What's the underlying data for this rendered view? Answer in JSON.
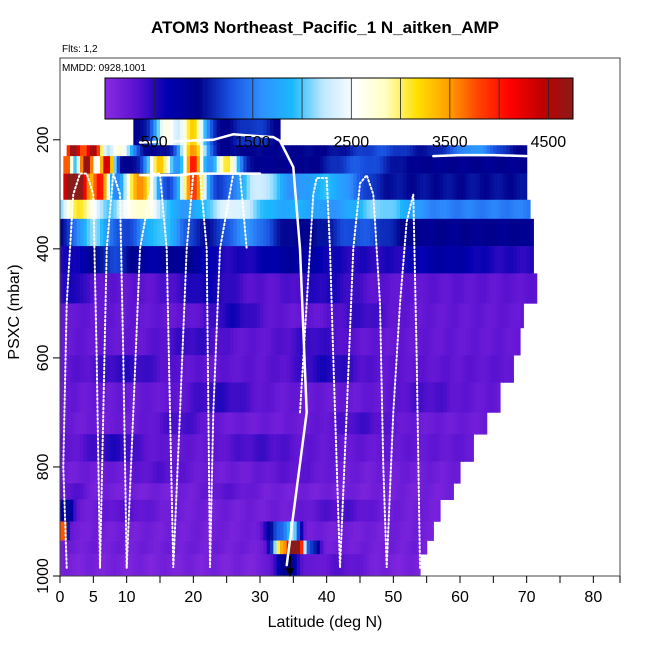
{
  "chart_data": {
    "type": "heatmap",
    "title": "ATOM3 Northeast_Pacific_1 N_aitken_AMP",
    "flights_label": "Flts: 1,2",
    "dates_label": "MMDD: 0928,1001",
    "xlabel": "Latitude (deg N)",
    "ylabel": "PSXC (mbar)",
    "xlim": [
      0,
      84
    ],
    "ylim": [
      1000,
      50
    ],
    "x_ticks": [
      0,
      5,
      10,
      20,
      30,
      40,
      50,
      60,
      70,
      80
    ],
    "x_minor_ticks": [
      15,
      25,
      35,
      45,
      55,
      65,
      75,
      84
    ],
    "y_ticks": [
      200,
      400,
      600,
      800,
      1000
    ],
    "colorbar": {
      "range": [
        0,
        4750
      ],
      "ticks": [
        500,
        1500,
        2500,
        3500,
        4500
      ],
      "colors": [
        "#8a2be2",
        "#5a12d0",
        "#0000b0",
        "#00008b",
        "#1850e0",
        "#2f8fff",
        "#1ab8ff",
        "#bfe8ff",
        "#ffffff",
        "#ffffc0",
        "#ffe000",
        "#ffa000",
        "#ff4000",
        "#ff0000",
        "#c00000",
        "#8b1a1a"
      ]
    },
    "arrow_latitude": 34.5,
    "rows": [
      {
        "p": [
          150,
          210
        ],
        "x0": 11,
        "x1": 33,
        "base": 900,
        "bumps": [
          [
            16,
            1700,
            2
          ],
          [
            20,
            2300,
            2
          ],
          [
            29,
            300,
            3
          ]
        ]
      },
      {
        "p": [
          210,
          230
        ],
        "x0": 1,
        "x1": 70,
        "base": 950,
        "bumps": [
          [
            2,
            3800,
            1.5
          ],
          [
            5,
            3600,
            1.5
          ],
          [
            9,
            1800,
            2
          ],
          [
            20,
            2600,
            2
          ],
          [
            48,
            300,
            5
          ],
          [
            62,
            700,
            4
          ]
        ]
      },
      {
        "p": [
          230,
          262
        ],
        "x0": 0.5,
        "x1": 70,
        "base": 900,
        "bumps": [
          [
            1,
            3000,
            1
          ],
          [
            4,
            3900,
            1.2
          ],
          [
            7,
            3500,
            1.2
          ],
          [
            15,
            2400,
            2
          ],
          [
            20,
            3200,
            1.5
          ],
          [
            25,
            2200,
            2
          ],
          [
            45,
            400,
            5
          ]
        ]
      },
      {
        "p": [
          262,
          310
        ],
        "x0": 0.5,
        "x1": 70,
        "base": 1000,
        "bumps": [
          [
            1,
            3100,
            1.2
          ],
          [
            3,
            3600,
            1.5
          ],
          [
            6,
            3000,
            1.5
          ],
          [
            12,
            2600,
            2.5
          ],
          [
            20,
            2900,
            2
          ],
          [
            30,
            1300,
            4
          ],
          [
            40,
            900,
            5
          ]
        ]
      },
      {
        "p": [
          310,
          345
        ],
        "x0": 0,
        "x1": 70.5,
        "base": 1500,
        "bumps": [
          [
            3,
            1600,
            3
          ],
          [
            12,
            1300,
            4
          ],
          [
            26,
            900,
            5
          ],
          [
            36,
            300,
            4
          ],
          [
            48,
            600,
            5
          ]
        ]
      },
      {
        "p": [
          345,
          395
        ],
        "x0": 0,
        "x1": 71,
        "base": 900,
        "bumps": [
          [
            5,
            1200,
            3
          ],
          [
            15,
            1100,
            4
          ],
          [
            28,
            700,
            4
          ],
          [
            45,
            400,
            5
          ]
        ]
      },
      {
        "p": [
          395,
          445
        ],
        "x0": 0,
        "x1": 71,
        "base": 500,
        "bumps": [
          [
            8,
            700,
            4
          ],
          [
            18,
            400,
            4
          ],
          [
            35,
            300,
            5
          ],
          [
            58,
            250,
            5
          ]
        ]
      },
      {
        "p": [
          445,
          500
        ],
        "x0": 0,
        "x1": 71.5,
        "base": 280,
        "bumps": [
          [
            2,
            300,
            2
          ],
          [
            22,
            300,
            5
          ],
          [
            40,
            250,
            5
          ]
        ]
      },
      {
        "p": [
          500,
          545
        ],
        "x0": 0,
        "x1": 69.5,
        "base": 250,
        "bumps": [
          [
            26,
            300,
            4
          ],
          [
            45,
            200,
            4
          ]
        ]
      },
      {
        "p": [
          545,
          595
        ],
        "x0": 0,
        "x1": 69,
        "base": 250,
        "bumps": [
          [
            20,
            200,
            5
          ],
          [
            38,
            200,
            5
          ]
        ]
      },
      {
        "p": [
          595,
          645
        ],
        "x0": 0,
        "x1": 68,
        "base": 280,
        "bumps": [
          [
            10,
            200,
            5
          ],
          [
            40,
            250,
            5
          ]
        ]
      },
      {
        "p": [
          645,
          700
        ],
        "x0": 0,
        "x1": 66,
        "base": 230,
        "bumps": [
          [
            24,
            250,
            5
          ],
          [
            55,
            150,
            5
          ]
        ]
      },
      {
        "p": [
          700,
          740
        ],
        "x0": 0,
        "x1": 64,
        "base": 200,
        "bumps": [
          [
            18,
            200,
            4
          ],
          [
            45,
            200,
            5
          ]
        ]
      },
      {
        "p": [
          740,
          790
        ],
        "x0": 0,
        "x1": 62,
        "base": 250,
        "bumps": [
          [
            8,
            250,
            4
          ],
          [
            30,
            150,
            5
          ]
        ]
      },
      {
        "p": [
          790,
          830
        ],
        "x0": 0,
        "x1": 60,
        "base": 180,
        "bumps": [
          [
            15,
            150,
            5
          ],
          [
            35,
            120,
            5
          ]
        ]
      },
      {
        "p": [
          830,
          860
        ],
        "x0": 0,
        "x1": 59,
        "base": 150,
        "bumps": [
          [
            2,
            200,
            2
          ],
          [
            25,
            150,
            4
          ]
        ]
      },
      {
        "p": [
          860,
          900
        ],
        "x0": 0,
        "x1": 57,
        "base": 170,
        "bumps": [
          [
            1,
            900,
            1
          ],
          [
            10,
            150,
            4
          ],
          [
            42,
            200,
            5
          ]
        ]
      },
      {
        "p": [
          900,
          935
        ],
        "x0": 0,
        "x1": 56,
        "base": 160,
        "bumps": [
          [
            0.5,
            4300,
            0.6
          ],
          [
            33,
            1200,
            2
          ],
          [
            35,
            1600,
            1
          ]
        ]
      },
      {
        "p": [
          935,
          960
        ],
        "x0": 0,
        "x1": 55,
        "base": 170,
        "bumps": [
          [
            33,
            2900,
            1.2
          ],
          [
            35,
            4100,
            1.2
          ],
          [
            36,
            2500,
            1
          ],
          [
            38,
            900,
            1
          ]
        ]
      },
      {
        "p": [
          960,
          1000
        ],
        "x0": 0,
        "x1": 54,
        "base": 120,
        "bumps": [
          [
            34,
            800,
            2
          ],
          [
            42,
            200,
            4
          ]
        ]
      }
    ],
    "tracks": [
      {
        "name": "flight-track-1",
        "dotted": false,
        "points": [
          [
            12,
            205
          ],
          [
            17,
            203
          ],
          [
            23,
            200
          ],
          [
            26,
            190
          ],
          [
            28,
            192
          ],
          [
            32,
            195
          ],
          [
            33,
            202
          ],
          [
            35,
            250
          ],
          [
            36,
            400
          ],
          [
            37,
            700
          ],
          [
            34,
            980
          ]
        ]
      },
      {
        "name": "flight-track-2",
        "dotted": false,
        "points": [
          [
            12,
            265
          ],
          [
            18,
            265
          ],
          [
            20,
            262
          ],
          [
            27,
            262
          ],
          [
            30,
            262
          ]
        ]
      },
      {
        "name": "flight-track-3",
        "dotted": true,
        "points": [
          [
            1,
            985
          ],
          [
            0.5,
            800
          ],
          [
            1,
            500
          ],
          [
            2,
            300
          ],
          [
            3,
            262
          ],
          [
            4,
            262
          ],
          [
            5,
            300
          ],
          [
            5.5,
            600
          ],
          [
            6,
            985
          ],
          [
            6.5,
            700
          ],
          [
            7,
            400
          ],
          [
            8,
            262
          ],
          [
            9,
            300
          ],
          [
            9.5,
            600
          ],
          [
            10,
            985
          ]
        ]
      },
      {
        "name": "flight-track-4",
        "dotted": true,
        "points": [
          [
            10,
            985
          ],
          [
            11,
            700
          ],
          [
            12,
            400
          ],
          [
            14,
            262
          ],
          [
            15,
            262
          ],
          [
            16,
            400
          ],
          [
            16.5,
            700
          ],
          [
            17,
            985
          ],
          [
            18,
            700
          ],
          [
            19,
            400
          ],
          [
            20,
            262
          ],
          [
            21,
            262
          ],
          [
            22,
            400
          ],
          [
            22.5,
            985
          ],
          [
            23,
            700
          ],
          [
            24,
            400
          ],
          [
            26,
            262
          ],
          [
            27,
            262
          ],
          [
            28,
            400
          ]
        ]
      },
      {
        "name": "flight-track-5",
        "dotted": true,
        "points": [
          [
            36,
            700
          ],
          [
            37,
            500
          ],
          [
            38,
            300
          ],
          [
            38.5,
            270
          ],
          [
            40,
            270
          ],
          [
            40.5,
            400
          ],
          [
            41,
            600
          ],
          [
            42,
            985
          ],
          [
            43,
            700
          ],
          [
            44,
            400
          ],
          [
            45,
            280
          ],
          [
            46,
            265
          ],
          [
            47,
            300
          ],
          [
            48,
            500
          ],
          [
            48.5,
            800
          ],
          [
            49,
            985
          ],
          [
            50,
            700
          ],
          [
            51,
            500
          ],
          [
            52,
            350
          ],
          [
            53,
            300
          ],
          [
            53.5,
            600
          ],
          [
            54,
            985
          ]
        ]
      },
      {
        "name": "flight-track-6",
        "dotted": false,
        "points": [
          [
            56,
            230
          ],
          [
            60,
            228
          ],
          [
            65,
            228
          ],
          [
            70,
            230
          ]
        ]
      }
    ]
  }
}
